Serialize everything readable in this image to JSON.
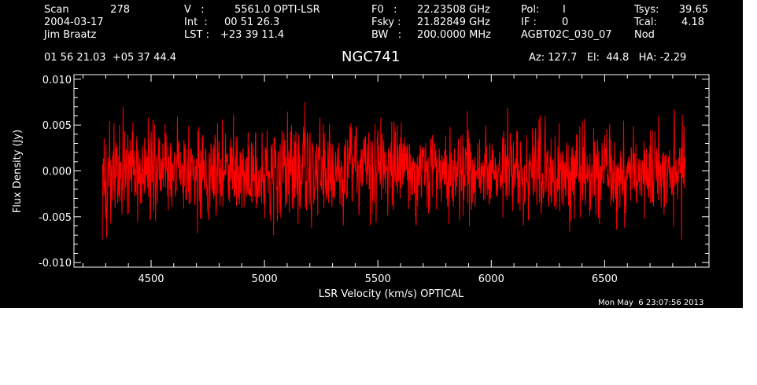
{
  "header": {
    "col1": {
      "scan_label": "Scan",
      "scan_value": "278",
      "date": "2004-03-17",
      "observer": "Jim Braatz"
    },
    "col2": {
      "v_label": "V   :",
      "v_value": "5561.0 OPTI-LSR",
      "int_label": "Int  :",
      "int_value": "00 51 26.3",
      "lst_label": "LST :",
      "lst_value": "+23 39 11.4"
    },
    "col3": {
      "f0_label": "F0   :",
      "f0_value": "22.23508 GHz",
      "fsky_label": "Fsky :",
      "fsky_value": "21.82849 GHz",
      "bw_label": "BW   :",
      "bw_value": "200.0000 MHz"
    },
    "col4": {
      "pol_label": "Pol:",
      "pol_value": "I",
      "if_label": "IF :",
      "if_value": "0",
      "project": "AGBT02C_030_07"
    },
    "col5": {
      "tsys_label": "Tsys:",
      "tsys_value": "39.65",
      "tcal_label": "Tcal:",
      "tcal_value": "4.18",
      "mode": "Nod"
    },
    "coords": "01 56 21.03  +05 37 44.4",
    "pointing": "Az: 127.7   El:  44.8   HA: -2.29"
  },
  "title": "NGC741",
  "timestamp": "Mon May  6 23:07:56 2013",
  "colors": {
    "background": "#000000",
    "axes": "#ffffff",
    "trace": "#ff0000"
  },
  "chart_data": {
    "type": "line",
    "title": "NGC741",
    "xlabel": "LSR Velocity (km/s) OPTICAL",
    "ylabel": "Flux Density (Jy)",
    "xlim": [
      4160,
      6960
    ],
    "ylim": [
      -0.0105,
      0.0105
    ],
    "xticks": [
      4500,
      5000,
      5500,
      6000,
      6500
    ],
    "xtick_labels": [
      "4500",
      "5000",
      "5500",
      "6000",
      "6500"
    ],
    "yticks": [
      -0.01,
      -0.005,
      0.0,
      0.005,
      0.01
    ],
    "ytick_labels": [
      "-0.010",
      "-0.005",
      "0.000",
      "0.005",
      "0.010"
    ],
    "x_range": [
      4285,
      6855
    ],
    "num_points": 1600,
    "noise_rms": 0.0025,
    "noise_peak": 0.0075,
    "baseline": 0.0,
    "grid": false,
    "series": [
      {
        "color": "#ff0000"
      }
    ]
  }
}
